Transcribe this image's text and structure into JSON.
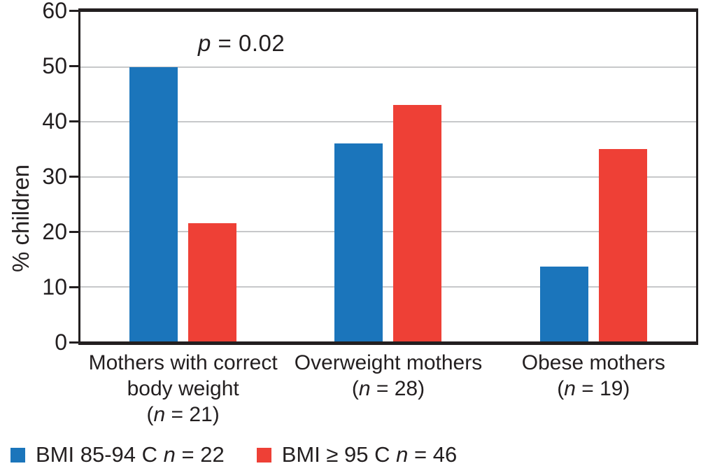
{
  "figure": {
    "background": "#ffffff",
    "axis_color": "#231f20",
    "gridline_color": "#c7c8ca"
  },
  "chart_data": {
    "type": "bar",
    "title": "",
    "xlabel": "",
    "ylabel": "% children",
    "ylim": [
      0,
      60
    ],
    "yticks": [
      0,
      10,
      20,
      30,
      40,
      50,
      60
    ],
    "grid": "horizontal gridlines at each y tick",
    "legend_position": "bottom-left",
    "annotation": {
      "var": "p",
      "rest": " = 0.02"
    },
    "categories": [
      {
        "lines": [
          "Mothers with correct",
          "body weight"
        ],
        "n_prefix": "(",
        "n_var": "n",
        "n_suffix": " = 21)"
      },
      {
        "lines": [
          "Overweight mothers"
        ],
        "n_prefix": "(",
        "n_var": "n",
        "n_suffix": " = 28)"
      },
      {
        "lines": [
          "Obese mothers"
        ],
        "n_prefix": "(",
        "n_var": "n",
        "n_suffix": " = 19)"
      }
    ],
    "series": [
      {
        "id": "blue",
        "label_prefix": "BMI 85-94 C ",
        "label_var": "n",
        "label_suffix": " = 22",
        "color": "#1b75bb",
        "values": [
          50,
          36,
          13.6
        ]
      },
      {
        "id": "red",
        "label_prefix": "BMI ≥ 95 C ",
        "label_var": "n",
        "label_suffix": " = 46",
        "color": "#ee4036",
        "values": [
          21.5,
          43,
          35
        ]
      }
    ]
  }
}
